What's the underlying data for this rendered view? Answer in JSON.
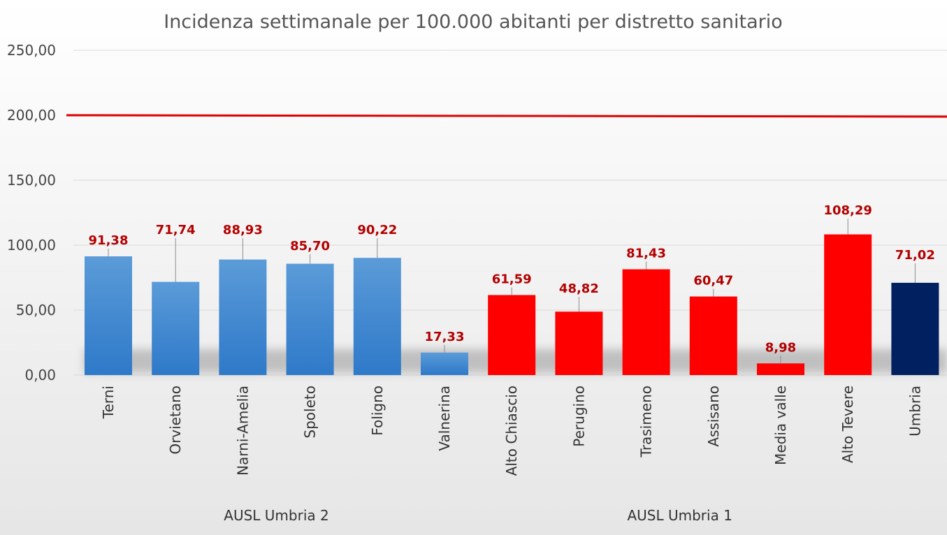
{
  "chart_data": {
    "type": "bar",
    "title": "Incidenza settimanale per 100.000 abitanti per distretto sanitario",
    "categories": [
      "Terni",
      "Orvietano",
      "Narni-Amelia",
      "Spoleto",
      "Foligno",
      "Valnerina",
      "Alto Chiascio",
      "Perugino",
      "Trasimeno",
      "Assisano",
      "Media valle",
      "Alto Tevere",
      "Umbria"
    ],
    "values": [
      91.38,
      71.74,
      88.93,
      85.7,
      90.22,
      17.33,
      61.59,
      48.82,
      81.43,
      60.47,
      8.98,
      108.29,
      71.02
    ],
    "value_labels": [
      "91,38",
      "71,74",
      "88,93",
      "85,70",
      "90,22",
      "17,33",
      "61,59",
      "48,82",
      "81,43",
      "60,47",
      "8,98",
      "108,29",
      "71,02"
    ],
    "groups": [
      {
        "name": "AUSL Umbria 2",
        "categories": [
          "Terni",
          "Orvietano",
          "Narni-Amelia",
          "Spoleto",
          "Foligno",
          "Valnerina"
        ]
      },
      {
        "name": "AUSL Umbria 1",
        "categories": [
          "Alto Chiascio",
          "Perugino",
          "Trasimeno",
          "Assisano",
          "Media valle",
          "Alto Tevere"
        ]
      }
    ],
    "bar_colors": [
      "#3a86d1",
      "#3a86d1",
      "#3a86d1",
      "#3a86d1",
      "#3a86d1",
      "#3a86d1",
      "#ff0000",
      "#ff0000",
      "#ff0000",
      "#ff0000",
      "#ff0000",
      "#ff0000",
      "#002060"
    ],
    "reference_line": {
      "value": 200,
      "color": "#e00000"
    },
    "ylim": [
      0,
      250
    ],
    "yticks": [
      0,
      50,
      100,
      150,
      200,
      250
    ],
    "ytick_labels": [
      "0,00",
      "50,00",
      "100,00",
      "150,00",
      "200,00",
      "250,00"
    ],
    "xlabel": "",
    "ylabel": "",
    "grid": true,
    "legend": "none"
  }
}
